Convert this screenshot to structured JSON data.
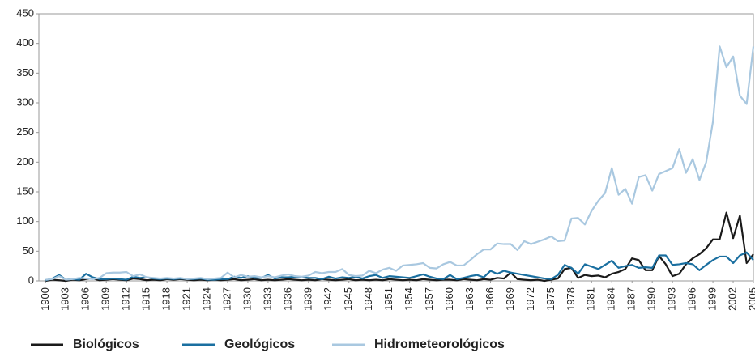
{
  "chart_data": {
    "type": "line",
    "x": [
      1900,
      1901,
      1902,
      1903,
      1904,
      1905,
      1906,
      1907,
      1908,
      1909,
      1910,
      1911,
      1912,
      1913,
      1914,
      1915,
      1916,
      1917,
      1918,
      1919,
      1920,
      1921,
      1922,
      1923,
      1924,
      1925,
      1926,
      1927,
      1928,
      1929,
      1930,
      1931,
      1932,
      1933,
      1934,
      1935,
      1936,
      1937,
      1938,
      1939,
      1940,
      1941,
      1942,
      1943,
      1944,
      1945,
      1946,
      1947,
      1948,
      1949,
      1950,
      1951,
      1952,
      1953,
      1954,
      1955,
      1956,
      1957,
      1958,
      1959,
      1960,
      1961,
      1962,
      1963,
      1964,
      1965,
      1966,
      1967,
      1968,
      1969,
      1970,
      1971,
      1972,
      1973,
      1974,
      1975,
      1976,
      1977,
      1978,
      1979,
      1980,
      1981,
      1982,
      1983,
      1984,
      1985,
      1986,
      1987,
      1988,
      1989,
      1990,
      1991,
      1992,
      1993,
      1994,
      1995,
      1996,
      1997,
      1998,
      1999,
      2000,
      2001,
      2002,
      2003,
      2004,
      2005
    ],
    "series": [
      {
        "name": "Biológicos",
        "color": "#1a1a1a",
        "values": [
          0,
          2,
          1,
          0,
          2,
          1,
          3,
          4,
          1,
          2,
          3,
          2,
          1,
          4,
          3,
          1,
          2,
          1,
          3,
          2,
          3,
          2,
          1,
          2,
          1,
          2,
          1,
          2,
          3,
          1,
          2,
          3,
          1,
          2,
          1,
          2,
          3,
          2,
          1,
          2,
          1,
          3,
          2,
          1,
          2,
          3,
          1,
          2,
          1,
          2,
          1,
          3,
          2,
          1,
          2,
          1,
          3,
          2,
          1,
          2,
          2,
          1,
          3,
          2,
          1,
          3,
          2,
          5,
          4,
          14,
          3,
          2,
          1,
          2,
          0,
          2,
          4,
          20,
          22,
          5,
          10,
          8,
          9,
          6,
          12,
          15,
          20,
          38,
          35,
          18,
          18,
          42,
          28,
          8,
          12,
          28,
          38,
          45,
          55,
          70,
          70,
          115,
          72,
          110,
          30,
          45
        ]
      },
      {
        "name": "Geológicos",
        "color": "#1a6fa0",
        "values": [
          1,
          4,
          10,
          2,
          3,
          2,
          12,
          6,
          3,
          3,
          4,
          3,
          2,
          7,
          5,
          6,
          4,
          3,
          4,
          3,
          4,
          3,
          3,
          4,
          2,
          2,
          3,
          3,
          7,
          5,
          8,
          5,
          5,
          10,
          4,
          6,
          6,
          7,
          6,
          5,
          5,
          3,
          7,
          4,
          6,
          5,
          7,
          4,
          8,
          10,
          5,
          8,
          7,
          6,
          5,
          8,
          11,
          7,
          4,
          3,
          10,
          3,
          5,
          8,
          10,
          6,
          17,
          12,
          17,
          14,
          12,
          10,
          8,
          6,
          4,
          3,
          10,
          27,
          22,
          12,
          28,
          24,
          20,
          27,
          34,
          22,
          25,
          27,
          22,
          23,
          22,
          43,
          43,
          27,
          28,
          30,
          28,
          18,
          27,
          35,
          41,
          41,
          30,
          43,
          48,
          35
        ]
      },
      {
        "name": "Hidrometeorológicos",
        "color": "#a9c8e0",
        "values": [
          2,
          3,
          8,
          2,
          3,
          5,
          4,
          3,
          5,
          13,
          14,
          14,
          15,
          8,
          11,
          6,
          5,
          4,
          5,
          4,
          5,
          3,
          4,
          5,
          3,
          4,
          5,
          14,
          6,
          10,
          7,
          8,
          6,
          8,
          6,
          9,
          11,
          8,
          7,
          9,
          15,
          13,
          15,
          15,
          20,
          10,
          8,
          9,
          17,
          13,
          19,
          22,
          17,
          26,
          27,
          28,
          30,
          22,
          21,
          28,
          32,
          26,
          26,
          35,
          45,
          53,
          53,
          63,
          62,
          62,
          52,
          67,
          62,
          66,
          70,
          75,
          67,
          68,
          105,
          106,
          95,
          118,
          135,
          148,
          190,
          145,
          155,
          130,
          175,
          178,
          152,
          180,
          185,
          190,
          222,
          182,
          205,
          170,
          200,
          268,
          395,
          360,
          378,
          312,
          298,
          395
        ]
      }
    ],
    "xlim": [
      1899,
      2005
    ],
    "xticks": [
      1900,
      1903,
      1906,
      1909,
      1912,
      1915,
      1918,
      1921,
      1924,
      1927,
      1930,
      1933,
      1936,
      1939,
      1942,
      1945,
      1948,
      1951,
      1954,
      1957,
      1960,
      1963,
      1966,
      1969,
      1972,
      1975,
      1978,
      1981,
      1984,
      1987,
      1990,
      1993,
      1996,
      1999,
      2002,
      2005
    ],
    "ylim": [
      0,
      450
    ],
    "yticks": [
      0,
      50,
      100,
      150,
      200,
      250,
      300,
      350,
      400,
      450
    ],
    "legend": "bottom"
  }
}
